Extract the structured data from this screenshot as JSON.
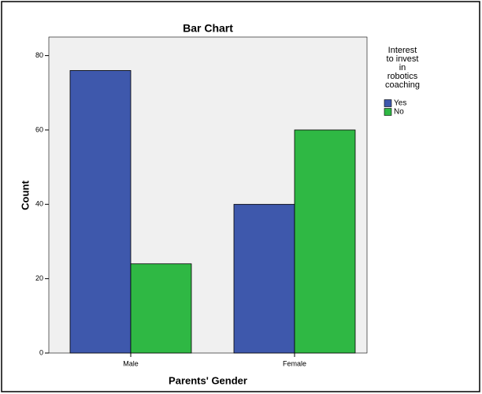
{
  "chart_data": {
    "type": "bar",
    "title": "Bar Chart",
    "x_label": "Parents' Gender",
    "y_label": "Count",
    "legend_title": [
      "Interest",
      "to invest",
      "in",
      "robotics",
      "coaching"
    ],
    "categories": [
      "Male",
      "Female"
    ],
    "series": [
      {
        "name": "Yes",
        "color": "#3e58ac",
        "values": [
          76,
          40
        ]
      },
      {
        "name": "No",
        "color": "#2fb844",
        "values": [
          24,
          60
        ]
      }
    ],
    "ylim": [
      0,
      85
    ],
    "yticks": [
      0,
      20,
      40,
      60,
      80
    ],
    "legend": "right"
  }
}
